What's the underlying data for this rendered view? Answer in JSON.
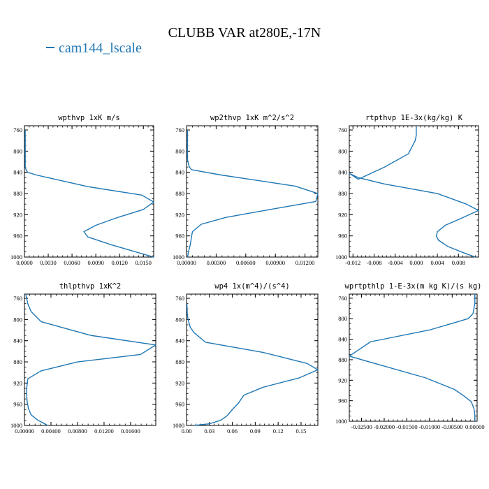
{
  "figure": {
    "title": "CLUBB VAR at280E,-17N",
    "legend_label": "cam144_lscale",
    "series_color": "#1f77b4"
  },
  "chart_data": [
    {
      "type": "line",
      "title": "wpthvp  1xK m/s",
      "x_ticks": [
        "0.0000",
        "0.0030",
        "0.0060",
        "0.0090",
        "0.0120",
        "0.0150"
      ],
      "xlim": [
        0.0,
        0.0163
      ],
      "y_ticks": [
        "760",
        "800",
        "840",
        "880",
        "920",
        "960",
        "1000"
      ],
      "ylim": [
        1000,
        752
      ],
      "series": [
        {
          "x": [
            0.0001,
            0.0001,
            0.0001,
            0.0001,
            0.0001,
            0.0001,
            0.0001,
            0.0002,
            0.0004,
            0.0015,
            0.008,
            0.0148,
            0.0163,
            0.015,
            0.0118,
            0.009,
            0.0075,
            0.008,
            0.011,
            0.014,
            0.0163
          ],
          "y": [
            760,
            775,
            790,
            805,
            820,
            825,
            830,
            835,
            840,
            845,
            867,
            883,
            896,
            910,
            925,
            940,
            952,
            962,
            977,
            990,
            1000
          ]
        }
      ]
    },
    {
      "type": "line",
      "title": "wp2thvp  1xK m^2/s^2",
      "x_ticks": [
        "0.00000",
        "0.00300",
        "0.00600",
        "0.00900",
        "0.01200"
      ],
      "xlim": [
        0.0,
        0.0133
      ],
      "y_ticks": [
        "760",
        "800",
        "840",
        "880",
        "920",
        "960",
        "1000"
      ],
      "ylim": [
        1000,
        752
      ],
      "series": [
        {
          "x": [
            0.0001,
            0.0001,
            0.0001,
            0.0001,
            0.0002,
            0.0003,
            0.0005,
            0.0035,
            0.011,
            0.0133,
            0.0131,
            0.0085,
            0.004,
            0.0015,
            0.0006,
            0.0005,
            0.0004,
            0.0002,
            0.0001
          ],
          "y": [
            760,
            780,
            800,
            815,
            825,
            830,
            835,
            845,
            866,
            880,
            895,
            910,
            925,
            938,
            952,
            962,
            975,
            990,
            1000
          ]
        }
      ]
    },
    {
      "type": "line",
      "title": "rtpthvp  1E-3x(kg/kg) K",
      "x_ticks": [
        "-0.012",
        "-0.008",
        "-0.004",
        "0.000",
        "0.004",
        "0.008"
      ],
      "xlim": [
        -0.0127,
        0.0118
      ],
      "y_ticks": [
        "760",
        "800",
        "840",
        "880",
        "920",
        "960",
        "1000"
      ],
      "ylim": [
        1000,
        752
      ],
      "series": [
        {
          "x": [
            0.0,
            0.0,
            -0.0002,
            -0.0015,
            -0.006,
            -0.011,
            -0.0127,
            -0.011,
            -0.006,
            0.004,
            0.0095,
            0.0118,
            0.0085,
            0.0055,
            0.004,
            0.0038,
            0.0042,
            0.006,
            0.009,
            0.0112
          ],
          "y": [
            752,
            770,
            780,
            805,
            830,
            853,
            842,
            850,
            862,
            880,
            900,
            912,
            927,
            940,
            952,
            960,
            968,
            980,
            992,
            1000
          ]
        }
      ]
    },
    {
      "type": "line",
      "title": "thlpthvp  1xK^2",
      "x_ticks": [
        "0.00000",
        "0.00400",
        "0.00800",
        "0.01200",
        "0.01600"
      ],
      "xlim": [
        0.0,
        0.0198
      ],
      "y_ticks": [
        "760",
        "800",
        "840",
        "880",
        "920",
        "960",
        "1000"
      ],
      "ylim": [
        1000,
        752
      ],
      "series": [
        {
          "x": [
            0.0002,
            0.0005,
            0.001,
            0.0025,
            0.01,
            0.0198,
            0.0175,
            0.008,
            0.0025,
            0.0005,
            0.0003,
            0.0004,
            0.0006,
            0.001,
            0.002,
            0.0035
          ],
          "y": [
            752,
            770,
            785,
            804,
            830,
            848,
            866,
            880,
            897,
            912,
            935,
            955,
            968,
            980,
            990,
            1000
          ]
        }
      ]
    },
    {
      "type": "line",
      "title": "wp4  1x(m^4)/(s^4)",
      "x_ticks": [
        "0.00",
        "0.03",
        "0.06",
        "0.09",
        "0.12",
        "0.15"
      ],
      "xlim": [
        0.0,
        0.172
      ],
      "y_ticks": [
        "760",
        "800",
        "840",
        "880",
        "920",
        "960",
        "1000"
      ],
      "ylim": [
        1000,
        752
      ],
      "series": [
        {
          "x": [
            0.0005,
            0.001,
            0.002,
            0.005,
            0.01,
            0.025,
            0.1,
            0.158,
            0.172,
            0.148,
            0.1,
            0.075,
            0.068,
            0.06,
            0.053,
            0.045,
            0.03,
            0.01
          ],
          "y": [
            770,
            790,
            800,
            815,
            825,
            843,
            862,
            883,
            895,
            910,
            928,
            943,
            958,
            970,
            982,
            990,
            997,
            1000
          ]
        }
      ]
    },
    {
      "type": "line",
      "title": "wprtpthlp  1-E-3x(m kg K)/(s kg)",
      "x_ticks": [
        "-0.02500",
        "-0.02000",
        "-0.01500",
        "-0.01000",
        "-0.00500",
        "0.00000"
      ],
      "xlim": [
        -0.0277,
        0.0005
      ],
      "y_ticks": [
        "760",
        "800",
        "840",
        "880",
        "920",
        "960",
        "1000"
      ],
      "ylim": [
        1000,
        752
      ],
      "series": [
        {
          "x": [
            0.0,
            0.0,
            -0.0004,
            -0.0015,
            -0.01,
            -0.023,
            -0.0277,
            -0.023,
            -0.011,
            -0.0045,
            -0.0022,
            -0.0008,
            -0.0002,
            0.0,
            0.0
          ],
          "y": [
            752,
            770,
            790,
            800,
            822,
            845,
            873,
            885,
            915,
            938,
            952,
            962,
            975,
            988,
            1000
          ]
        }
      ]
    }
  ]
}
